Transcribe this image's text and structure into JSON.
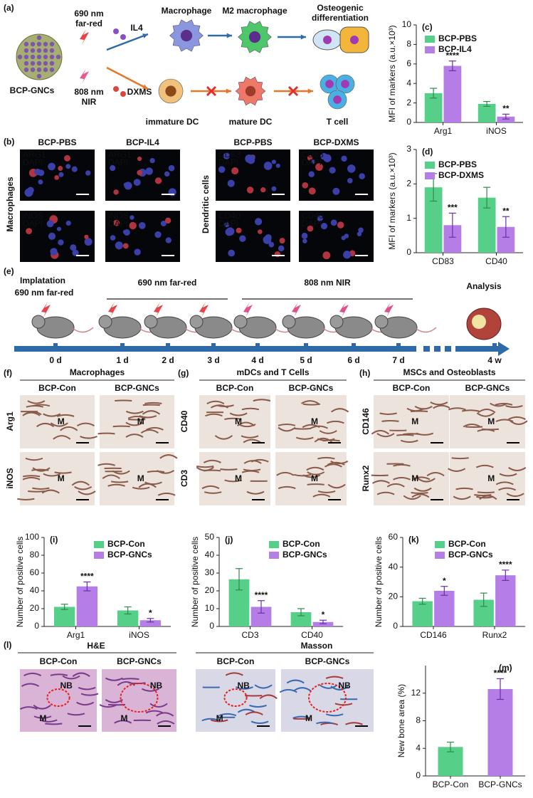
{
  "panel_a": {
    "label": "(a)",
    "material": "BCP-GNCs",
    "laser1": [
      "690 nm",
      "far-red"
    ],
    "laser2": [
      "808 nm",
      "NIR"
    ],
    "cytokine1": "IL4",
    "cytokine2": "DXMS",
    "cells_top": [
      "Macrophage",
      "M2 macrophage"
    ],
    "osteo": [
      "Osteogenic",
      "differentiation"
    ],
    "cells_bottom": [
      "immature DC",
      "mature DC",
      "T cell"
    ]
  },
  "panel_b": {
    "label": "(b)",
    "groups": [
      "BCP-PBS",
      "BCP-IL4",
      "BCP-PBS",
      "BCP-DXMS"
    ],
    "rows": [
      "Macrophages",
      "Dendritic cells"
    ],
    "stains": [
      [
        "ARG1",
        "DAPI"
      ],
      [
        "ARG1",
        "DAPI"
      ],
      [
        "CD83",
        "DAPI"
      ],
      [
        "CD83",
        "DAPI"
      ],
      [
        "iNOS",
        "DAPI"
      ],
      [
        "iNOS",
        "DAPI"
      ],
      [
        "CD40",
        "DAPI"
      ],
      [
        "CD40",
        "DAPI"
      ]
    ]
  },
  "panel_e": {
    "label": "(e)",
    "start": [
      "Implatation",
      "690 nm far-red"
    ],
    "phase1": "690 nm far-red",
    "phase2": "808 nm NIR",
    "end": "Analysis",
    "days": [
      "0 d",
      "1 d",
      "2 d",
      "3 d",
      "4 d",
      "5 d",
      "6 d",
      "7 d",
      "4 w"
    ]
  },
  "panels_fgh": [
    {
      "label": "(f)",
      "title": "Macrophages",
      "groups": [
        "BCP-Con",
        "BCP-GNCs"
      ],
      "rows": [
        "Arg1",
        "iNOS"
      ]
    },
    {
      "label": "(g)",
      "title": "mDCs and T Cells",
      "groups": [
        "BCP-Con",
        "BCP-GNCs"
      ],
      "rows": [
        "CD40",
        "CD3"
      ]
    },
    {
      "label": "(h)",
      "title": "MSCs and Osteoblasts",
      "groups": [
        "BCP-Con",
        "BCP-GNCs"
      ],
      "rows": [
        "CD146",
        "Runx2"
      ]
    }
  ],
  "tissue_label": "M",
  "panel_l": {
    "label": "(l)",
    "stains": [
      "H&E",
      "Masson"
    ],
    "groups": [
      "BCP-Con",
      "BCP-GNCs"
    ],
    "new_bone": "NB"
  },
  "chart_data": [
    {
      "type": "bar",
      "panel": "(c)",
      "ylabel": "MFI of markers (a.u.×10³)",
      "categories": [
        "Arg1",
        "iNOS"
      ],
      "ylim": [
        0,
        10
      ],
      "yticks": [
        0,
        2,
        4,
        6,
        8,
        10
      ],
      "series": [
        {
          "name": "BCP-PBS",
          "color": "#56cf88",
          "values": [
            3.0,
            1.9
          ],
          "errors": [
            0.5,
            0.25
          ]
        },
        {
          "name": "BCP-IL4",
          "color": "#b57de6",
          "values": [
            5.8,
            0.6
          ],
          "errors": [
            0.5,
            0.25
          ],
          "significance": [
            "****",
            "**"
          ]
        }
      ]
    },
    {
      "type": "bar",
      "panel": "(d)",
      "ylabel": "MFI of markers (a.u.×10³)",
      "categories": [
        "CD83",
        "CD40"
      ],
      "ylim": [
        0,
        3
      ],
      "yticks": [
        0,
        1,
        2,
        3
      ],
      "series": [
        {
          "name": "BCP-PBS",
          "color": "#56cf88",
          "values": [
            1.9,
            1.6
          ],
          "errors": [
            0.4,
            0.3
          ]
        },
        {
          "name": "BCP-DXMS",
          "color": "#b57de6",
          "values": [
            0.8,
            0.75
          ],
          "errors": [
            0.35,
            0.3
          ],
          "significance": [
            "***",
            "**"
          ]
        }
      ]
    },
    {
      "type": "bar",
      "panel": "(i)",
      "ylabel": "Number of positive cells",
      "categories": [
        "Arg1",
        "iNOS"
      ],
      "ylim": [
        0,
        100
      ],
      "yticks": [
        0,
        20,
        40,
        60,
        80,
        100
      ],
      "series": [
        {
          "name": "BCP-Con",
          "color": "#56cf88",
          "values": [
            22,
            18
          ],
          "errors": [
            3,
            4
          ]
        },
        {
          "name": "BCP-GNCs",
          "color": "#b57de6",
          "values": [
            45,
            7
          ],
          "errors": [
            5,
            2
          ],
          "significance": [
            "****",
            "*"
          ]
        }
      ]
    },
    {
      "type": "bar",
      "panel": "(j)",
      "ylabel": "Number of positive cells",
      "categories": [
        "CD3",
        "CD40"
      ],
      "ylim": [
        0,
        50
      ],
      "yticks": [
        0,
        10,
        20,
        30,
        40,
        50
      ],
      "series": [
        {
          "name": "BCP-Con",
          "color": "#56cf88",
          "values": [
            26.5,
            8
          ],
          "errors": [
            6,
            2
          ]
        },
        {
          "name": "BCP-GNCs",
          "color": "#b57de6",
          "values": [
            11,
            2.5
          ],
          "errors": [
            3.5,
            1
          ],
          "significance": [
            "****",
            "*"
          ]
        }
      ]
    },
    {
      "type": "bar",
      "panel": "(k)",
      "ylabel": "Number of positive cells",
      "categories": [
        "CD146",
        "Runx2"
      ],
      "ylim": [
        0,
        60
      ],
      "yticks": [
        0,
        20,
        40,
        60
      ],
      "series": [
        {
          "name": "BCP-Con",
          "color": "#56cf88",
          "values": [
            17,
            18
          ],
          "errors": [
            2,
            4.5
          ]
        },
        {
          "name": "BCP-GNCs",
          "color": "#b57de6",
          "values": [
            24,
            34.5
          ],
          "errors": [
            3,
            3.5
          ],
          "significance": [
            "*",
            "****"
          ]
        }
      ]
    },
    {
      "type": "bar",
      "panel": "(m)",
      "ylabel": "New bone area (%)",
      "categories": [
        "BCP-Con",
        "BCP-GNCs"
      ],
      "ylim": [
        0,
        16
      ],
      "yticks": [
        0,
        4,
        8,
        12
      ],
      "values": [
        4.2,
        12.6
      ],
      "errors": [
        0.7,
        1.5
      ],
      "colors": [
        "#56cf88",
        "#b57de6"
      ],
      "significance": [
        null,
        "****"
      ]
    }
  ]
}
